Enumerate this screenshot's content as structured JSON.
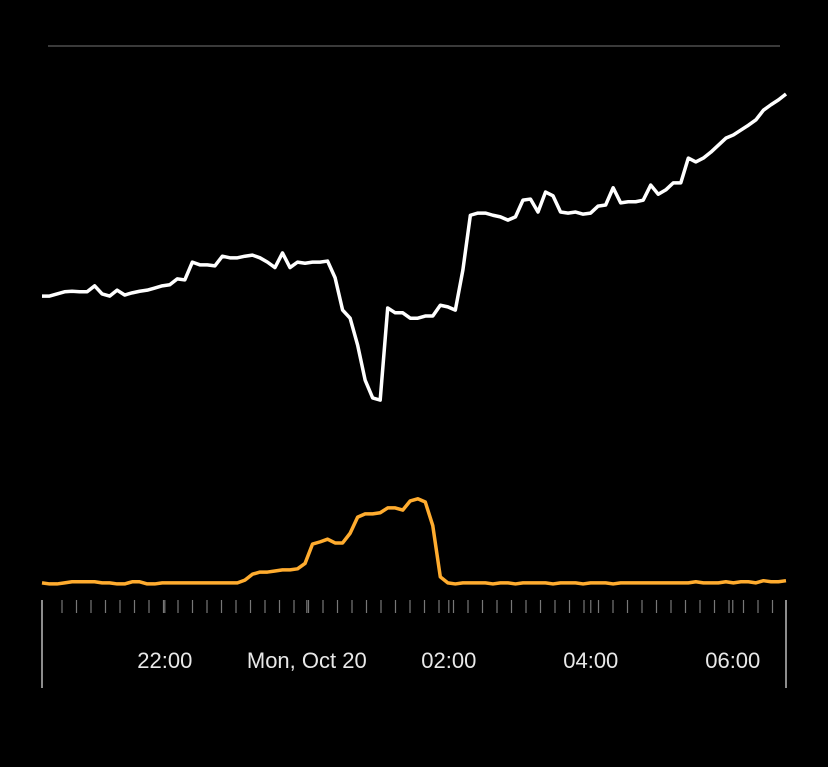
{
  "chart_data": {
    "type": "line",
    "xlim": [
      20.27,
      30.75
    ],
    "xticks": [
      {
        "value": 22,
        "label": "22:00"
      },
      {
        "value": 24,
        "label": "Mon, Oct 20"
      },
      {
        "value": 26,
        "label": "02:00"
      },
      {
        "value": 28,
        "label": "04:00"
      },
      {
        "value": 30,
        "label": "06:00"
      }
    ],
    "ylim": [
      0,
      100
    ],
    "series": [
      {
        "color": "#ffffff",
        "values": [
          53.6,
          53.6,
          54.0,
          54.4,
          54.5,
          54.4,
          54.4,
          55.5,
          54.0,
          53.6,
          54.7,
          53.8,
          54.2,
          54.5,
          54.7,
          55.1,
          55.5,
          55.7,
          56.8,
          56.6,
          59.9,
          59.4,
          59.4,
          59.2,
          61.0,
          60.7,
          60.7,
          61.0,
          61.2,
          60.7,
          59.9,
          58.9,
          61.6,
          58.9,
          59.9,
          59.7,
          59.9,
          59.9,
          60.1,
          57.0,
          51.0,
          49.5,
          44.5,
          38.0,
          34.7,
          34.3,
          51.4,
          50.5,
          50.5,
          49.5,
          49.5,
          49.9,
          49.9,
          51.9,
          51.6,
          51.0,
          58.4,
          68.6,
          69.0,
          69.0,
          68.6,
          68.3,
          67.7,
          68.3,
          71.4,
          71.6,
          69.2,
          72.9,
          72.2,
          69.2,
          69.0,
          69.2,
          68.8,
          69.0,
          70.3,
          70.5,
          73.7,
          70.9,
          71.1,
          71.1,
          71.4,
          74.2,
          72.5,
          73.3,
          74.6,
          74.6,
          79.2,
          78.5,
          79.2,
          80.3,
          81.6,
          82.9,
          83.5,
          84.4,
          85.3,
          86.3,
          88.1,
          89.1,
          90.0,
          91.1
        ]
      },
      {
        "color": "#ffac2f",
        "values": [
          0.4,
          0.2,
          0.2,
          0.4,
          0.6,
          0.6,
          0.6,
          0.6,
          0.4,
          0.4,
          0.2,
          0.2,
          0.6,
          0.6,
          0.2,
          0.2,
          0.4,
          0.4,
          0.4,
          0.4,
          0.4,
          0.4,
          0.4,
          0.4,
          0.4,
          0.4,
          0.4,
          0.9,
          2.0,
          2.4,
          2.4,
          2.6,
          2.8,
          2.8,
          3.0,
          4.0,
          7.6,
          8.0,
          8.5,
          7.8,
          7.8,
          9.6,
          12.6,
          13.2,
          13.2,
          13.4,
          14.3,
          14.3,
          13.9,
          15.6,
          16.0,
          15.4,
          11.0,
          1.5,
          0.4,
          0.2,
          0.4,
          0.4,
          0.4,
          0.4,
          0.2,
          0.4,
          0.4,
          0.2,
          0.4,
          0.4,
          0.4,
          0.4,
          0.2,
          0.4,
          0.4,
          0.4,
          0.2,
          0.4,
          0.4,
          0.4,
          0.2,
          0.4,
          0.4,
          0.4,
          0.4,
          0.4,
          0.4,
          0.4,
          0.4,
          0.4,
          0.4,
          0.6,
          0.4,
          0.4,
          0.4,
          0.6,
          0.4,
          0.6,
          0.6,
          0.4,
          0.8,
          0.6,
          0.6,
          0.8
        ]
      }
    ]
  }
}
